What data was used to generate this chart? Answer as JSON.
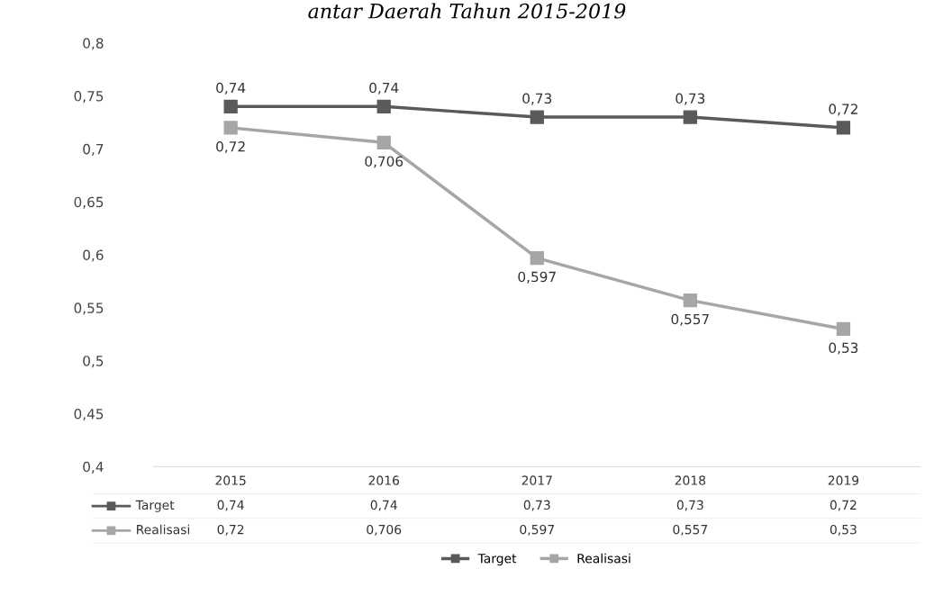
{
  "chart_data": {
    "type": "line",
    "title": "antar Daerah Tahun 2015-2019",
    "categories": [
      "2015",
      "2016",
      "2017",
      "2018",
      "2019"
    ],
    "series": [
      {
        "name": "Target",
        "color": "#5a5a5a",
        "values": [
          0.74,
          0.74,
          0.73,
          0.73,
          0.72
        ],
        "value_labels": [
          "0,74",
          "0,74",
          "0,73",
          "0,73",
          "0,72"
        ]
      },
      {
        "name": "Realisasi",
        "color": "#a6a6a6",
        "values": [
          0.72,
          0.706,
          0.597,
          0.557,
          0.53
        ],
        "value_labels": [
          "0,72",
          "0,706",
          "0,597",
          "0,557",
          "0,53"
        ]
      }
    ],
    "ylim": [
      0.4,
      0.8
    ],
    "yticks": [
      {
        "value": 0.4,
        "label": "0,4"
      },
      {
        "value": 0.45,
        "label": "0,45"
      },
      {
        "value": 0.5,
        "label": "0,5"
      },
      {
        "value": 0.55,
        "label": "0,55"
      },
      {
        "value": 0.6,
        "label": "0,6"
      },
      {
        "value": 0.65,
        "label": "0,65"
      },
      {
        "value": 0.7,
        "label": "0,7"
      },
      {
        "value": 0.75,
        "label": "0,75"
      },
      {
        "value": 0.8,
        "label": "0,8"
      }
    ],
    "marker": "square",
    "line_style": "solid",
    "legend": "bottom"
  }
}
